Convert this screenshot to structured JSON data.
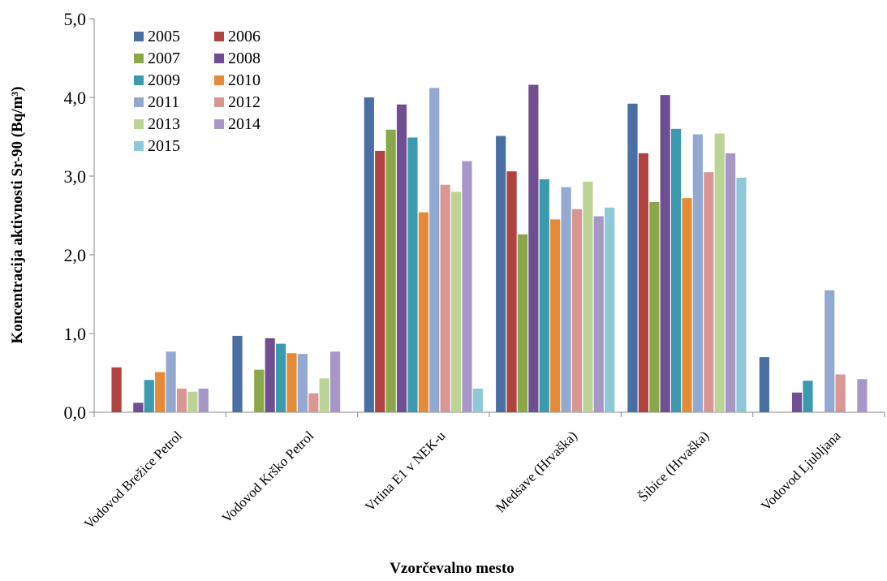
{
  "chart_data": {
    "type": "bar",
    "xlabel": "Vzorčevalno mesto",
    "ylabel": "Koncentracija aktivnosti Sr-90 (Bq/m³)",
    "ylim": [
      0,
      5
    ],
    "yticks": [
      "0,0",
      "1,0",
      "2,0",
      "3,0",
      "4,0",
      "5,0"
    ],
    "grid": false,
    "legend_position": "top-left",
    "categories": [
      "Vodovod Brežice Petrol",
      "Vodovod Krško Petrol",
      "Vrtina E1 v NEK-u",
      "Medsave (Hrvaška)",
      "Šibice (Hrvaška)",
      "Vodovod Ljubljana"
    ],
    "series": [
      {
        "name": "2005",
        "color": "#4a6fa5",
        "values": [
          null,
          0.97,
          4.0,
          3.51,
          3.92,
          0.7
        ]
      },
      {
        "name": "2006",
        "color": "#b04240",
        "values": [
          0.57,
          null,
          3.32,
          3.06,
          3.29,
          null
        ]
      },
      {
        "name": "2007",
        "color": "#8aa84a",
        "values": [
          null,
          0.54,
          3.59,
          2.26,
          2.67,
          null
        ]
      },
      {
        "name": "2008",
        "color": "#6f4f92",
        "values": [
          0.12,
          0.94,
          3.91,
          4.16,
          4.03,
          0.25
        ]
      },
      {
        "name": "2009",
        "color": "#3b9aad",
        "values": [
          0.41,
          0.87,
          3.49,
          2.96,
          3.6,
          0.4
        ]
      },
      {
        "name": "2010",
        "color": "#e58b38",
        "values": [
          0.51,
          0.75,
          2.54,
          2.45,
          2.72,
          null
        ]
      },
      {
        "name": "2011",
        "color": "#93a9d2",
        "values": [
          0.77,
          0.74,
          4.12,
          2.86,
          3.53,
          1.55
        ]
      },
      {
        "name": "2012",
        "color": "#d99794",
        "values": [
          0.3,
          0.24,
          2.89,
          2.58,
          3.05,
          0.48
        ]
      },
      {
        "name": "2013",
        "color": "#bcd396",
        "values": [
          0.26,
          0.43,
          2.8,
          2.93,
          3.54,
          null
        ]
      },
      {
        "name": "2014",
        "color": "#a697c8",
        "values": [
          0.3,
          0.77,
          3.19,
          2.49,
          3.29,
          0.42
        ]
      },
      {
        "name": "2015",
        "color": "#8fc8d8",
        "values": [
          null,
          null,
          0.3,
          2.6,
          2.98,
          null
        ]
      }
    ]
  }
}
